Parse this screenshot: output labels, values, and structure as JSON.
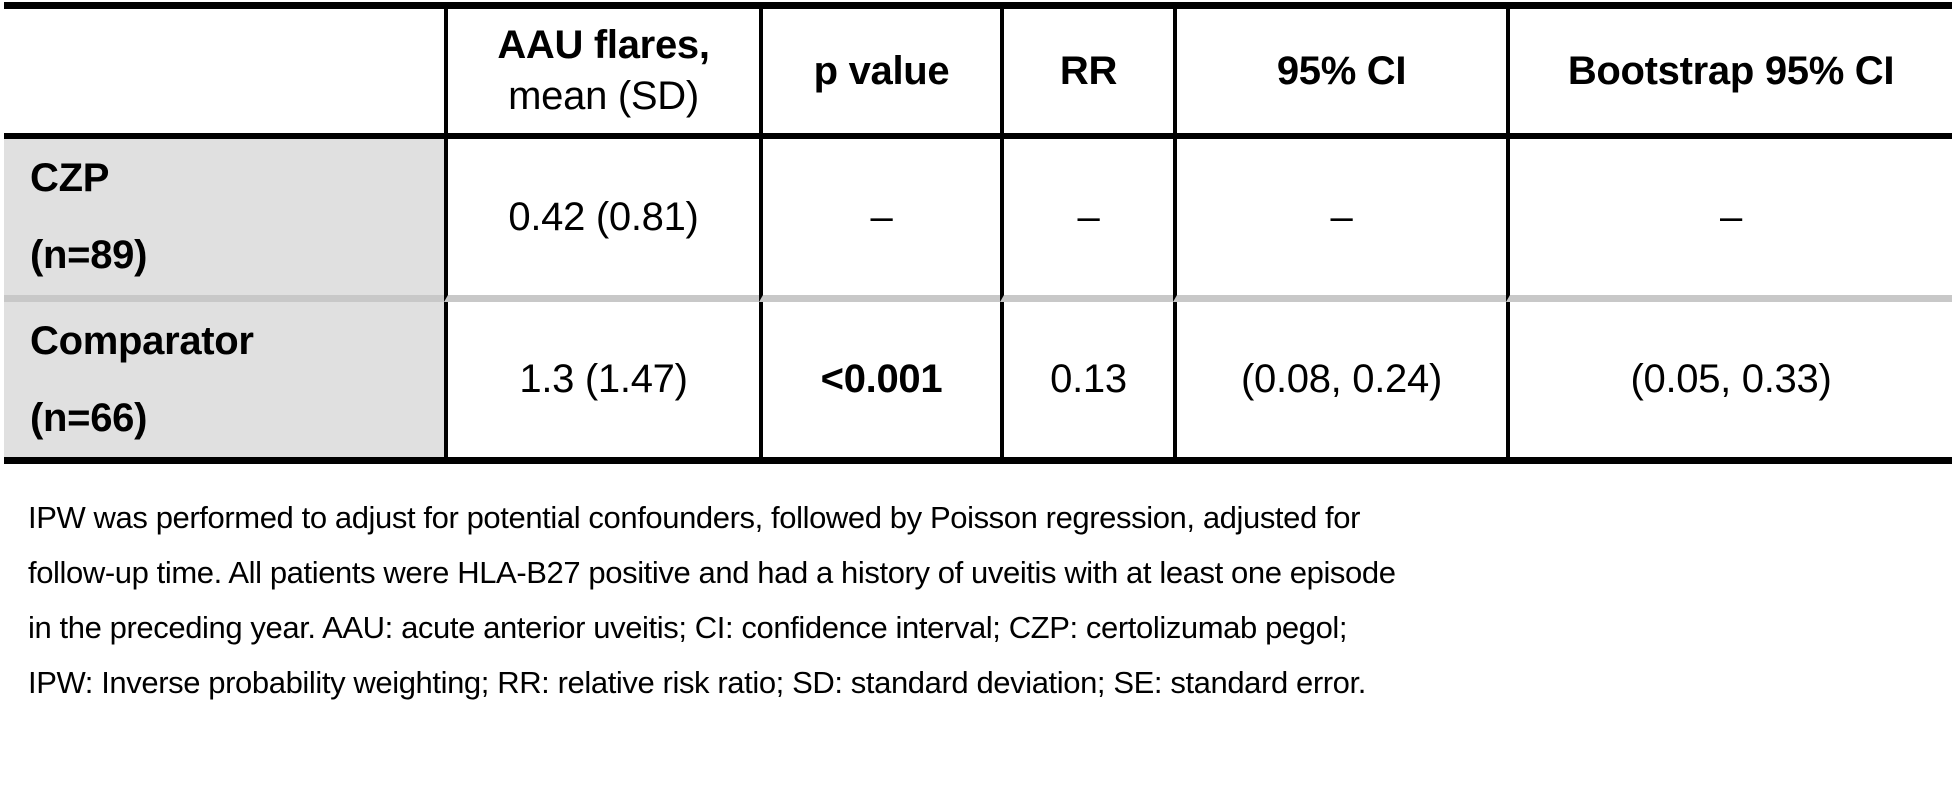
{
  "table": {
    "header": {
      "row_header": "",
      "aau_flares_line1": "AAU flares,",
      "aau_flares_line2": "mean (SD)",
      "p_value": "p value",
      "rr": "RR",
      "ci_95": "95% CI",
      "bootstrap_ci_95": "Bootstrap 95% CI"
    },
    "rows": [
      {
        "label_line1": "CZP",
        "label_line2": "(n=89)",
        "aau_flares": "0.42 (0.81)",
        "p_value": "–",
        "rr": "–",
        "ci_95": "–",
        "bootstrap_ci_95": "–"
      },
      {
        "label_line1": "Comparator",
        "label_line2": "(n=66)",
        "aau_flares": "1.3 (1.47)",
        "p_value": "<0.001",
        "rr": "0.13",
        "ci_95": "(0.08, 0.24)",
        "bootstrap_ci_95": "(0.05, 0.33)"
      }
    ]
  },
  "footnote": {
    "lines": [
      "IPW was performed to adjust for potential confounders, followed by Poisson regression, adjusted for",
      "follow-up time. All patients were HLA-B27 positive and had a history of uveitis with at least one episode",
      "in the preceding year. AAU: acute anterior uveitis; CI: confidence interval; CZP: certolizumab pegol;",
      "IPW: Inverse probability weighting; RR: relative risk ratio; SD: standard deviation; SE: standard error."
    ]
  },
  "chart_data": {
    "type": "table",
    "columns": [
      "",
      "AAU flares, mean (SD)",
      "p value",
      "RR",
      "95% CI",
      "Bootstrap 95% CI"
    ],
    "rows": [
      [
        "CZP (n=89)",
        "0.42 (0.81)",
        "–",
        "–",
        "–",
        "–"
      ],
      [
        "Comparator (n=66)",
        "1.3 (1.47)",
        "<0.001",
        "0.13",
        "(0.08, 0.24)",
        "(0.05, 0.33)"
      ]
    ]
  },
  "colors": {
    "row_header_bg": "#e0e0e0",
    "row_separator": "#c8c8c8",
    "border": "#000000",
    "text": "#000000"
  }
}
